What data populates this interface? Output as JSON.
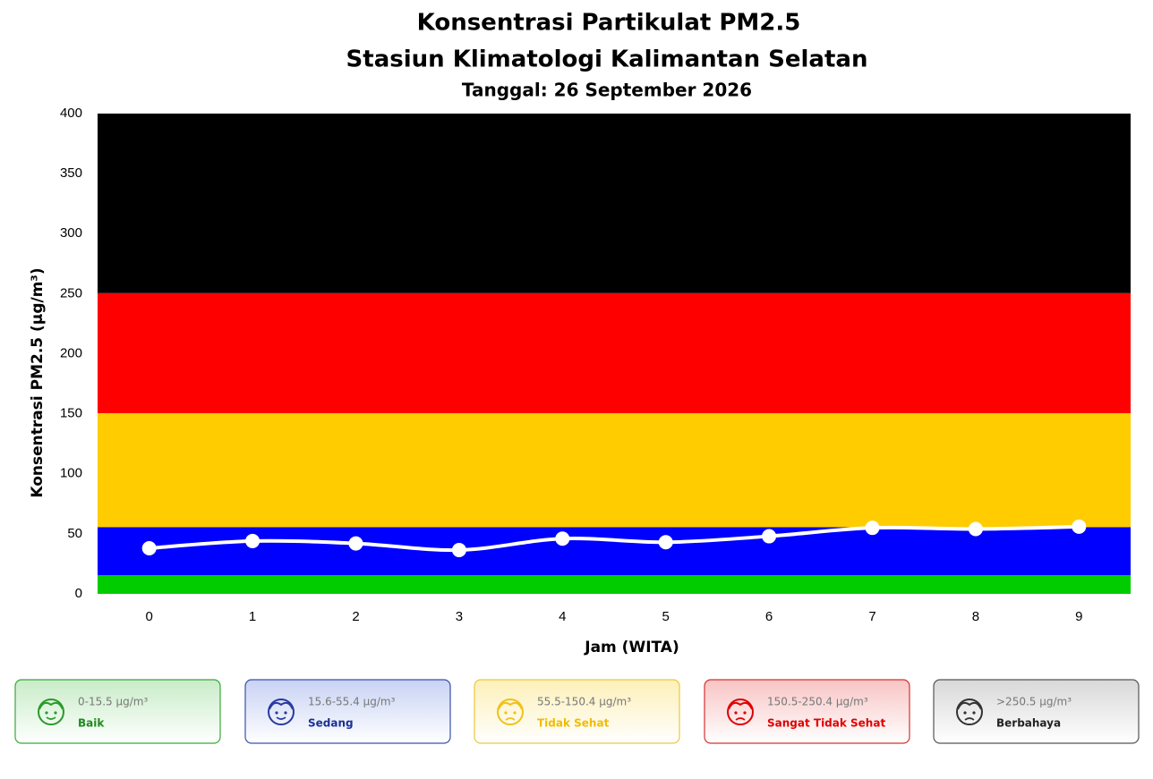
{
  "chart_data": {
    "type": "line",
    "title": "Konsentrasi Partikulat PM2.5",
    "subtitle": "Stasiun Klimatologi Kalimantan Selatan",
    "date_label": "Tanggal: 26 September 2026",
    "x_label": "Jam (WITA)",
    "y_label": "Konsentrasi PM2.5 (μg/m³)",
    "categories": [
      "0",
      "1",
      "2",
      "3",
      "4",
      "5",
      "6",
      "7",
      "8",
      "9"
    ],
    "values": [
      38,
      44,
      42,
      36.5,
      46,
      43,
      48,
      55,
      54,
      56
    ],
    "line_color": "#ffffff",
    "ylim": [
      0,
      400
    ],
    "yticks": [
      0,
      50,
      100,
      150,
      200,
      250,
      300,
      350,
      400
    ],
    "bands": [
      {
        "from": 0,
        "to": 15.5,
        "color": "#00cc00",
        "range": "0-15.5 μg/m³",
        "label": "Baik"
      },
      {
        "from": 15.5,
        "to": 55.5,
        "color": "#0000ff",
        "range": "15.6-55.4 μg/m³",
        "label": "Sedang"
      },
      {
        "from": 55.5,
        "to": 150.5,
        "color": "#ffcc00",
        "range": "55.5-150.4 μg/m³",
        "label": "Tidak Sehat"
      },
      {
        "from": 150.5,
        "to": 250.5,
        "color": "#ff0000",
        "range": "150.5-250.4 μg/m³",
        "label": "Sangat Tidak Sehat"
      },
      {
        "from": 250.5,
        "to": 400,
        "color": "#000000",
        "range": ">250.5 μg/m³",
        "label": "Berbahaya"
      }
    ]
  }
}
